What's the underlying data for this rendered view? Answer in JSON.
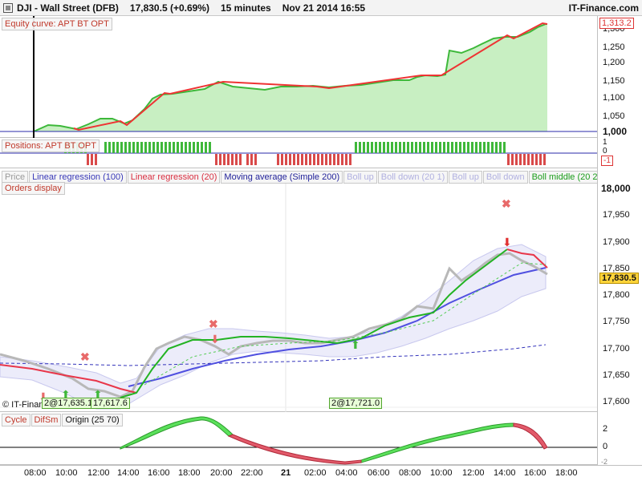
{
  "header": {
    "symbol": "DJI - Wall Street (DFB)",
    "price_change": "17,830.5 (+0.69%)",
    "interval": "15 minutes",
    "datetime": "Nov 21 2014 16:55",
    "brand": "IT-Finance.com"
  },
  "equity_panel": {
    "title": "Equity curve: APT BT OPT",
    "axis_labels": [
      "1,300",
      "1,250",
      "1,200",
      "1,150",
      "1,100",
      "1,050",
      "1,000"
    ],
    "current_value": "1,313.2"
  },
  "positions_panel": {
    "title": "Positions: APT BT OPT",
    "axis_top": "1",
    "axis_mid": "0",
    "axis_low": "-1"
  },
  "price_panel": {
    "legend": [
      "Price",
      "Linear regression (100)",
      "Linear regression (20)",
      "Moving average (Simple 200)",
      "Boll up",
      "Boll down (20 1)",
      "Boll up",
      "Boll down",
      "Boll middle (20 2)"
    ],
    "orders_tab": "Orders display",
    "axis_labels": [
      "18,000",
      "17,950",
      "17,900",
      "17,850",
      "17,800",
      "17,750",
      "17,700",
      "17,650",
      "17,600"
    ],
    "current_price": "17,830.5",
    "copyright": "© IT-Finance.com",
    "orders": [
      "2@17,635.1",
      "17,617.6",
      "2@17,721.0"
    ]
  },
  "cycle_panel": {
    "tabs": [
      "Cycle",
      "DifSm",
      "Origin (25 70)"
    ],
    "axis_labels": [
      "2",
      "0",
      "-2"
    ]
  },
  "time_axis": [
    "08:00",
    "10:00",
    "12:00",
    "14:00",
    "16:00",
    "18:00",
    "20:00",
    "22:00",
    "21",
    "02:00",
    "04:00",
    "06:00",
    "08:00",
    "10:00",
    "12:00",
    "14:00",
    "16:00",
    "18:00"
  ],
  "colors": {
    "equity_fill": "#c8efc2",
    "equity_line": "#3db83a",
    "long": "#3fb83a",
    "short": "#d94a4a",
    "lr100": "#4d4dd6",
    "lr20": "#e8364a",
    "boll_middle": "#23b323",
    "price": "#b8b8b8"
  }
}
